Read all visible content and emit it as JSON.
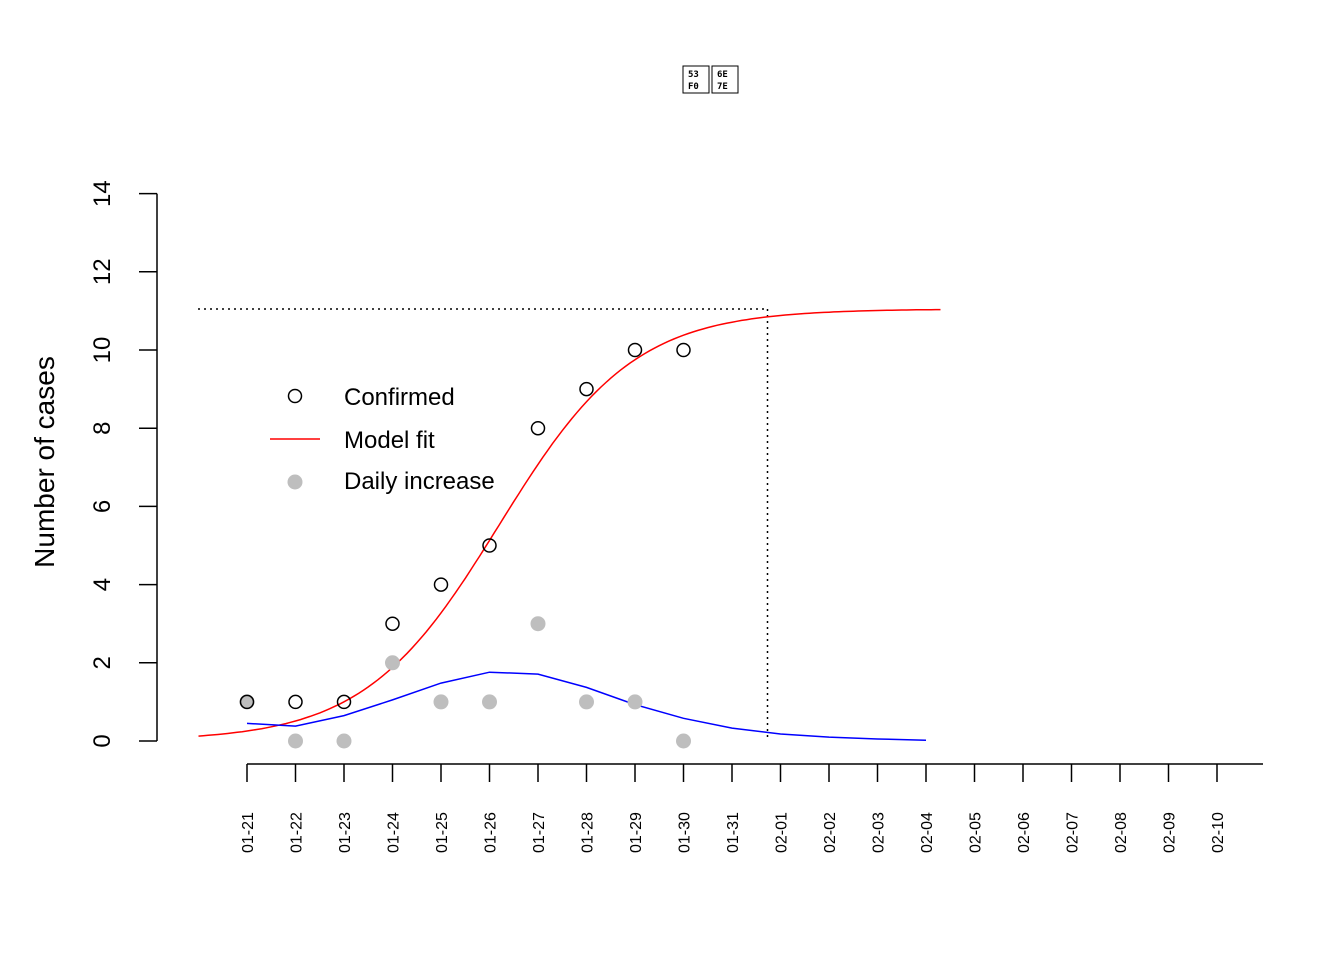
{
  "chart_data": {
    "type": "scatter",
    "title": "",
    "xlabel": "",
    "ylabel": "Number of cases",
    "ylim": [
      0,
      14
    ],
    "y_ticks": [
      0,
      2,
      4,
      6,
      8,
      10,
      12,
      14
    ],
    "x_tick_labels": [
      "01-21",
      "01-22",
      "01-23",
      "01-24",
      "01-25",
      "01-26",
      "01-27",
      "01-28",
      "01-29",
      "01-30",
      "01-31",
      "02-01",
      "02-02",
      "02-03",
      "02-04",
      "02-05",
      "02-06",
      "02-07",
      "02-08",
      "02-09",
      "02-10"
    ],
    "series": [
      {
        "name": "Confirmed",
        "kind": "points-open",
        "color": "#000000",
        "x": [
          "01-21",
          "01-22",
          "01-23",
          "01-24",
          "01-25",
          "01-26",
          "01-27",
          "01-28",
          "01-29",
          "01-30"
        ],
        "values": [
          1,
          1,
          1,
          3,
          4,
          5,
          8,
          9,
          10,
          10
        ]
      },
      {
        "name": "Model fit",
        "kind": "line",
        "color": "#ff0000",
        "curve": {
          "model": "logistic",
          "K": 11.05,
          "r": 0.72,
          "midpoint_day": 5.2,
          "x_start_day": -1.0,
          "x_end_day": 14.3
        }
      },
      {
        "name": "Daily increase",
        "kind": "points-filled",
        "color": "#bebebe",
        "x": [
          "01-21",
          "01-22",
          "01-23",
          "01-24",
          "01-25",
          "01-26",
          "01-27",
          "01-28",
          "01-29",
          "01-30"
        ],
        "values": [
          1,
          0,
          0,
          2,
          1,
          1,
          3,
          1,
          1,
          0
        ]
      },
      {
        "kind": "line",
        "color": "#0000ff",
        "x": [
          "01-21",
          "01-22",
          "01-23",
          "01-24",
          "01-25",
          "01-26",
          "01-27",
          "01-28",
          "01-29",
          "01-30",
          "01-31",
          "02-01",
          "02-02",
          "02-03",
          "02-04"
        ],
        "values": [
          0.45,
          0.38,
          0.65,
          1.05,
          1.48,
          1.76,
          1.71,
          1.37,
          0.93,
          0.58,
          0.33,
          0.18,
          0.1,
          0.05,
          0.02
        ]
      }
    ],
    "reference_lines": {
      "horizontal_y": 11.05,
      "vertical_x": "02-01",
      "style": "dotted"
    },
    "legend": {
      "placement": "left-middle",
      "entries": [
        "Confirmed",
        "Model fit",
        "Daily increase"
      ]
    },
    "grid": false
  }
}
